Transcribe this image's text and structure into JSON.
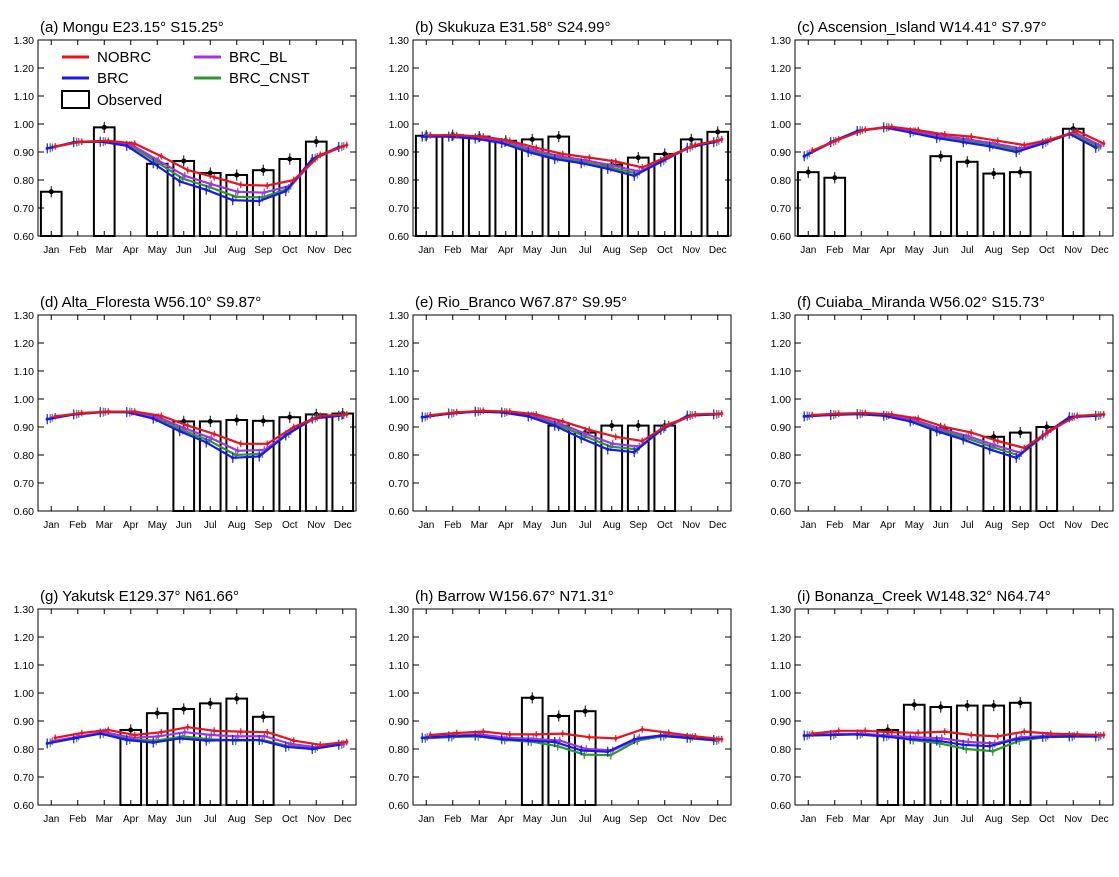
{
  "figure": {
    "y_tick_labels": [
      "0.60",
      "0.70",
      "0.80",
      "0.90",
      "1.00",
      "1.10",
      "1.20",
      "1.30"
    ],
    "x_tick_labels": [
      "Jan",
      "Feb",
      "Mar",
      "Apr",
      "May",
      "Jun",
      "Jul",
      "Aug",
      "Sep",
      "Oct",
      "Nov",
      "Dec"
    ],
    "legend": [
      {
        "key": "NOBRC",
        "label": "NOBRC"
      },
      {
        "key": "BRC",
        "label": "BRC"
      },
      {
        "key": "BRC_BL",
        "label": "BRC_BL"
      },
      {
        "key": "BRC_CNST",
        "label": "BRC_CNST"
      },
      {
        "key": "Observed",
        "label": "Observed"
      }
    ],
    "colors": {
      "NOBRC": "#e8141c",
      "BRC": "#1a1ae6",
      "BRC_BL": "#a035e8",
      "BRC_CNST": "#2a9a2a",
      "Observed": "#000000"
    }
  },
  "chart_data": [
    {
      "type": "line",
      "title": "(a) Mongu E23.15° S15.25°",
      "categories": [
        "Jan",
        "Feb",
        "Mar",
        "Apr",
        "May",
        "Jun",
        "Jul",
        "Aug",
        "Sep",
        "Oct",
        "Nov",
        "Dec"
      ],
      "ylim": [
        0.6,
        1.3
      ],
      "series": [
        {
          "name": "NOBRC",
          "values": [
            0.92,
            0.937,
            0.94,
            0.93,
            0.885,
            0.835,
            0.81,
            0.783,
            0.78,
            0.8,
            0.89,
            0.925
          ]
        },
        {
          "name": "BRC",
          "values": [
            0.913,
            0.935,
            0.937,
            0.922,
            0.86,
            0.795,
            0.765,
            0.728,
            0.725,
            0.76,
            0.875,
            0.918
          ]
        },
        {
          "name": "BRC_BL",
          "values": [
            0.916,
            0.936,
            0.938,
            0.925,
            0.87,
            0.815,
            0.785,
            0.758,
            0.755,
            0.78,
            0.883,
            0.921
          ]
        },
        {
          "name": "BRC_CNST",
          "values": [
            0.915,
            0.935,
            0.937,
            0.924,
            0.865,
            0.805,
            0.775,
            0.74,
            0.738,
            0.77,
            0.878,
            0.919
          ]
        }
      ],
      "observed": [
        0.758,
        null,
        0.988,
        null,
        0.858,
        0.868,
        0.825,
        0.818,
        0.835,
        0.875,
        0.937,
        null
      ]
    },
    {
      "type": "line",
      "title": "(b) Skukuza E31.58° S24.99°",
      "categories": [
        "Jan",
        "Feb",
        "Mar",
        "Apr",
        "May",
        "Jun",
        "Jul",
        "Aug",
        "Sep",
        "Oct",
        "Nov",
        "Dec"
      ],
      "ylim": [
        0.6,
        1.3
      ],
      "series": [
        {
          "name": "NOBRC",
          "values": [
            0.96,
            0.96,
            0.955,
            0.94,
            0.915,
            0.893,
            0.88,
            0.866,
            0.845,
            0.885,
            0.925,
            0.945
          ]
        },
        {
          "name": "BRC",
          "values": [
            0.955,
            0.955,
            0.948,
            0.932,
            0.9,
            0.875,
            0.86,
            0.84,
            0.815,
            0.865,
            0.915,
            0.935
          ]
        },
        {
          "name": "BRC_BL",
          "values": [
            0.958,
            0.958,
            0.952,
            0.937,
            0.908,
            0.885,
            0.87,
            0.852,
            0.83,
            0.875,
            0.92,
            0.94
          ]
        },
        {
          "name": "BRC_CNST",
          "values": [
            0.956,
            0.956,
            0.95,
            0.934,
            0.903,
            0.879,
            0.864,
            0.845,
            0.822,
            0.869,
            0.917,
            0.937
          ]
        }
      ],
      "observed": [
        0.958,
        0.96,
        0.955,
        0.94,
        0.945,
        0.955,
        null,
        0.855,
        0.88,
        0.893,
        0.945,
        0.972
      ]
    },
    {
      "type": "line",
      "title": "(c) Ascension_Island W14.41° S7.97°",
      "categories": [
        "Jan",
        "Feb",
        "Mar",
        "Apr",
        "May",
        "Jun",
        "Jul",
        "Aug",
        "Sep",
        "Oct",
        "Nov",
        "Dec"
      ],
      "ylim": [
        0.6,
        1.3
      ],
      "series": [
        {
          "name": "NOBRC",
          "values": [
            0.905,
            0.945,
            0.98,
            0.99,
            0.978,
            0.963,
            0.955,
            0.94,
            0.925,
            0.945,
            0.975,
            0.93
          ]
        },
        {
          "name": "BRC",
          "values": [
            0.885,
            0.935,
            0.975,
            0.988,
            0.97,
            0.95,
            0.935,
            0.92,
            0.9,
            0.93,
            0.965,
            0.915
          ]
        },
        {
          "name": "BRC_BL",
          "values": [
            0.895,
            0.94,
            0.978,
            0.989,
            0.974,
            0.957,
            0.945,
            0.93,
            0.912,
            0.938,
            0.97,
            0.922
          ]
        },
        {
          "name": "BRC_CNST",
          "values": [
            0.89,
            0.938,
            0.976,
            0.988,
            0.972,
            0.953,
            0.94,
            0.925,
            0.906,
            0.934,
            0.967,
            0.918
          ]
        }
      ],
      "observed": [
        0.828,
        0.808,
        null,
        null,
        null,
        0.885,
        0.865,
        0.823,
        0.828,
        null,
        0.983,
        null
      ]
    },
    {
      "type": "line",
      "title": "(d) Alta_Floresta W56.10° S9.87°",
      "categories": [
        "Jan",
        "Feb",
        "Mar",
        "Apr",
        "May",
        "Jun",
        "Jul",
        "Aug",
        "Sep",
        "Oct",
        "Nov",
        "Dec"
      ],
      "ylim": [
        0.6,
        1.3
      ],
      "series": [
        {
          "name": "NOBRC",
          "values": [
            0.938,
            0.95,
            0.955,
            0.955,
            0.94,
            0.905,
            0.875,
            0.84,
            0.84,
            0.9,
            0.94,
            0.945
          ]
        },
        {
          "name": "BRC",
          "values": [
            0.928,
            0.945,
            0.953,
            0.953,
            0.93,
            0.885,
            0.845,
            0.79,
            0.795,
            0.87,
            0.93,
            0.94
          ]
        },
        {
          "name": "BRC_BL",
          "values": [
            0.933,
            0.947,
            0.954,
            0.954,
            0.935,
            0.895,
            0.86,
            0.815,
            0.818,
            0.885,
            0.935,
            0.942
          ]
        },
        {
          "name": "BRC_CNST",
          "values": [
            0.93,
            0.946,
            0.953,
            0.953,
            0.932,
            0.889,
            0.851,
            0.8,
            0.805,
            0.877,
            0.932,
            0.941
          ]
        }
      ],
      "observed": [
        null,
        null,
        null,
        null,
        null,
        0.92,
        0.92,
        0.925,
        0.922,
        0.935,
        0.945,
        0.948
      ]
    },
    {
      "type": "line",
      "title": "(e) Rio_Branco W67.87° S9.95°",
      "categories": [
        "Jan",
        "Feb",
        "Mar",
        "Apr",
        "May",
        "Jun",
        "Jul",
        "Aug",
        "Sep",
        "Oct",
        "Nov",
        "Dec"
      ],
      "ylim": [
        0.6,
        1.3
      ],
      "series": [
        {
          "name": "NOBRC",
          "values": [
            0.942,
            0.953,
            0.958,
            0.955,
            0.945,
            0.92,
            0.89,
            0.865,
            0.85,
            0.91,
            0.945,
            0.948
          ]
        },
        {
          "name": "BRC",
          "values": [
            0.935,
            0.948,
            0.955,
            0.952,
            0.938,
            0.905,
            0.86,
            0.82,
            0.81,
            0.89,
            0.94,
            0.945
          ]
        },
        {
          "name": "BRC_BL",
          "values": [
            0.938,
            0.95,
            0.956,
            0.953,
            0.941,
            0.912,
            0.875,
            0.84,
            0.83,
            0.9,
            0.942,
            0.946
          ]
        },
        {
          "name": "BRC_CNST",
          "values": [
            0.936,
            0.949,
            0.955,
            0.952,
            0.939,
            0.908,
            0.868,
            0.83,
            0.82,
            0.895,
            0.941,
            0.945
          ]
        }
      ],
      "observed": [
        null,
        null,
        null,
        null,
        null,
        0.905,
        0.88,
        0.905,
        0.905,
        0.905,
        null,
        null
      ]
    },
    {
      "type": "line",
      "title": "(f) Cuiaba_Miranda W56.02° S15.73°",
      "categories": [
        "Jan",
        "Feb",
        "Mar",
        "Apr",
        "May",
        "Jun",
        "Jul",
        "Aug",
        "Sep",
        "Oct",
        "Nov",
        "Dec"
      ],
      "ylim": [
        0.6,
        1.3
      ],
      "series": [
        {
          "name": "NOBRC",
          "values": [
            0.943,
            0.948,
            0.95,
            0.945,
            0.93,
            0.9,
            0.88,
            0.85,
            0.825,
            0.89,
            0.94,
            0.945
          ]
        },
        {
          "name": "BRC",
          "values": [
            0.938,
            0.943,
            0.946,
            0.94,
            0.92,
            0.885,
            0.855,
            0.82,
            0.79,
            0.87,
            0.935,
            0.94
          ]
        },
        {
          "name": "BRC_BL",
          "values": [
            0.94,
            0.945,
            0.948,
            0.942,
            0.925,
            0.892,
            0.867,
            0.835,
            0.807,
            0.88,
            0.937,
            0.942
          ]
        },
        {
          "name": "BRC_CNST",
          "values": [
            0.939,
            0.944,
            0.947,
            0.941,
            0.922,
            0.888,
            0.861,
            0.828,
            0.798,
            0.875,
            0.936,
            0.941
          ]
        }
      ],
      "observed": [
        null,
        null,
        null,
        null,
        null,
        0.895,
        null,
        0.865,
        0.88,
        0.9,
        null,
        null
      ]
    },
    {
      "type": "line",
      "title": "(g) Yakutsk E129.37° N61.66°",
      "categories": [
        "Jan",
        "Feb",
        "Mar",
        "Apr",
        "May",
        "Jun",
        "Jul",
        "Aug",
        "Sep",
        "Oct",
        "Nov",
        "Dec"
      ],
      "ylim": [
        0.6,
        1.3
      ],
      "series": [
        {
          "name": "NOBRC",
          "values": [
            0.84,
            0.857,
            0.868,
            0.85,
            0.86,
            0.878,
            0.865,
            0.862,
            0.86,
            0.83,
            0.815,
            0.825
          ]
        },
        {
          "name": "BRC",
          "values": [
            0.82,
            0.838,
            0.855,
            0.832,
            0.823,
            0.838,
            0.83,
            0.832,
            0.832,
            0.808,
            0.8,
            0.815
          ]
        },
        {
          "name": "BRC_BL",
          "values": [
            0.828,
            0.845,
            0.86,
            0.84,
            0.845,
            0.86,
            0.85,
            0.845,
            0.846,
            0.818,
            0.806,
            0.818
          ]
        },
        {
          "name": "BRC_CNST",
          "values": [
            0.822,
            0.84,
            0.856,
            0.834,
            0.83,
            0.845,
            0.835,
            0.83,
            0.832,
            0.81,
            0.802,
            0.816
          ]
        }
      ],
      "observed": [
        null,
        null,
        null,
        0.868,
        0.928,
        0.943,
        0.963,
        0.98,
        0.915,
        null,
        null,
        null
      ]
    },
    {
      "type": "line",
      "title": "(h) Barrow W156.67° N71.31°",
      "categories": [
        "Jan",
        "Feb",
        "Mar",
        "Apr",
        "May",
        "Jun",
        "Jul",
        "Aug",
        "Sep",
        "Oct",
        "Nov",
        "Dec"
      ],
      "ylim": [
        0.6,
        1.3
      ],
      "series": [
        {
          "name": "NOBRC",
          "values": [
            0.85,
            0.857,
            0.862,
            0.852,
            0.852,
            0.855,
            0.842,
            0.838,
            0.87,
            0.858,
            0.845,
            0.835
          ]
        },
        {
          "name": "BRC",
          "values": [
            0.84,
            0.845,
            0.848,
            0.835,
            0.83,
            0.825,
            0.795,
            0.79,
            0.835,
            0.848,
            0.84,
            0.832
          ]
        },
        {
          "name": "BRC_BL",
          "values": [
            0.843,
            0.848,
            0.852,
            0.84,
            0.836,
            0.83,
            0.8,
            0.795,
            0.84,
            0.85,
            0.842,
            0.833
          ]
        },
        {
          "name": "BRC_CNST",
          "values": [
            0.838,
            0.843,
            0.845,
            0.832,
            0.826,
            0.81,
            0.78,
            0.778,
            0.83,
            0.846,
            0.838,
            0.83
          ]
        }
      ],
      "observed": [
        null,
        null,
        null,
        null,
        0.983,
        0.918,
        0.935,
        null,
        null,
        null,
        null,
        null
      ]
    },
    {
      "type": "line",
      "title": "(i) Bonanza_Creek W148.32° N64.74°",
      "categories": [
        "Jan",
        "Feb",
        "Mar",
        "Apr",
        "May",
        "Jun",
        "Jul",
        "Aug",
        "Sep",
        "Oct",
        "Nov",
        "Dec"
      ],
      "ylim": [
        0.6,
        1.3
      ],
      "series": [
        {
          "name": "NOBRC",
          "values": [
            0.855,
            0.865,
            0.865,
            0.86,
            0.858,
            0.862,
            0.85,
            0.845,
            0.862,
            0.855,
            0.852,
            0.85
          ]
        },
        {
          "name": "BRC",
          "values": [
            0.848,
            0.85,
            0.852,
            0.845,
            0.835,
            0.83,
            0.815,
            0.81,
            0.835,
            0.843,
            0.845,
            0.845
          ]
        },
        {
          "name": "BRC_BL",
          "values": [
            0.85,
            0.853,
            0.855,
            0.848,
            0.842,
            0.838,
            0.825,
            0.82,
            0.842,
            0.847,
            0.847,
            0.847
          ]
        },
        {
          "name": "BRC_CNST",
          "values": [
            0.849,
            0.851,
            0.853,
            0.845,
            0.832,
            0.82,
            0.8,
            0.792,
            0.83,
            0.842,
            0.844,
            0.844
          ]
        }
      ],
      "observed": [
        null,
        null,
        null,
        0.868,
        0.958,
        0.95,
        0.955,
        0.955,
        0.965,
        null,
        null,
        null
      ]
    }
  ]
}
